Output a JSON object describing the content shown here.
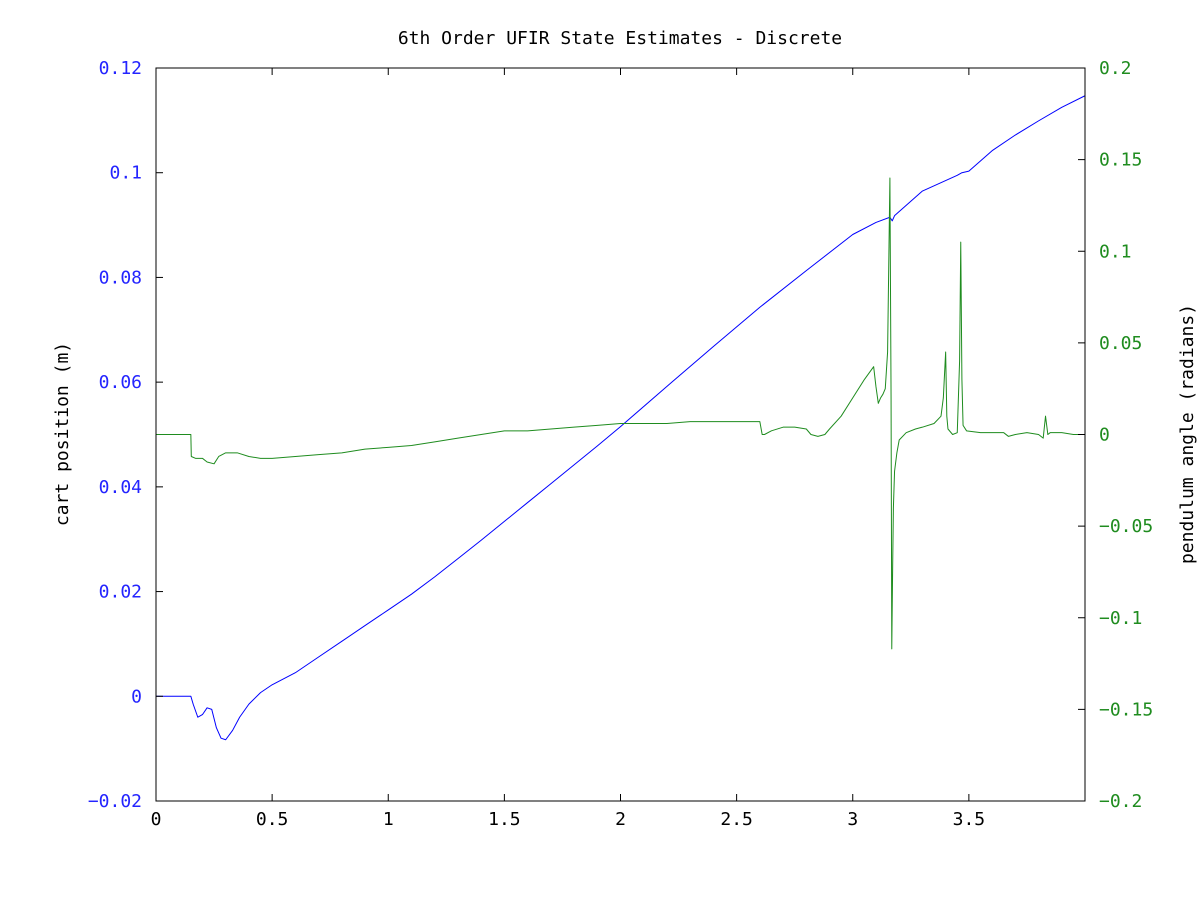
{
  "chart_data": {
    "type": "line",
    "title": "6th Order UFIR State Estimates - Discrete",
    "xlabel": "",
    "ylabel": "cart position (m)",
    "y2label": "pendulum angle (radians)",
    "xlim": [
      0,
      4
    ],
    "ylim": [
      -0.02,
      0.12
    ],
    "y2lim": [
      -0.2,
      0.2
    ],
    "grid": false,
    "x_ticks": [
      "0",
      "0.5",
      "1",
      "1.5",
      "2",
      "2.5",
      "3",
      "3.5"
    ],
    "y_ticks": [
      "-0.02",
      "0",
      "0.02",
      "0.04",
      "0.06",
      "0.08",
      "0.1",
      "0.12"
    ],
    "y2_ticks": [
      "-0.2",
      "-0.15",
      "-0.1",
      "-0.05",
      "0",
      "0.05",
      "0.1",
      "0.15",
      "0.2"
    ],
    "colors": {
      "left_axis": "#2424ff",
      "right_axis": "#1f8c1f",
      "axes": "#000000"
    },
    "series": [
      {
        "axis": "left",
        "color": "#0000ff",
        "x": [
          0,
          0.15,
          0.16,
          0.18,
          0.2,
          0.22,
          0.24,
          0.26,
          0.28,
          0.3,
          0.33,
          0.36,
          0.4,
          0.45,
          0.5,
          0.6,
          0.7,
          0.8,
          0.9,
          1.0,
          1.1,
          1.2,
          1.3,
          1.4,
          1.5,
          1.6,
          1.7,
          1.8,
          1.9,
          2.0,
          2.2,
          2.4,
          2.6,
          2.8,
          3.0,
          3.1,
          3.16,
          3.17,
          3.18,
          3.3,
          3.45,
          3.47,
          3.5,
          3.6,
          3.7,
          3.8,
          3.9,
          4.0
        ],
        "y": [
          0,
          0,
          -0.0015,
          -0.004,
          -0.0035,
          -0.0022,
          -0.0025,
          -0.006,
          -0.008,
          -0.0083,
          -0.0065,
          -0.004,
          -0.0015,
          0.0007,
          0.0022,
          0.0045,
          0.0075,
          0.0105,
          0.0135,
          0.0165,
          0.0195,
          0.0228,
          0.0263,
          0.0298,
          0.0334,
          0.037,
          0.0406,
          0.0442,
          0.0478,
          0.0515,
          0.0592,
          0.0668,
          0.0743,
          0.0813,
          0.0882,
          0.0905,
          0.0915,
          0.0908,
          0.0918,
          0.0965,
          0.0995,
          0.1,
          0.1003,
          0.1042,
          0.1072,
          0.1099,
          0.1125,
          0.1147
        ]
      },
      {
        "axis": "right",
        "color": "#1f8c1f",
        "x": [
          0,
          0.15,
          0.152,
          0.17,
          0.2,
          0.22,
          0.25,
          0.27,
          0.3,
          0.35,
          0.4,
          0.45,
          0.5,
          0.6,
          0.7,
          0.8,
          0.9,
          1.0,
          1.1,
          1.2,
          1.3,
          1.4,
          1.5,
          1.6,
          1.7,
          1.8,
          1.9,
          2.0,
          2.1,
          2.2,
          2.3,
          2.4,
          2.5,
          2.6,
          2.61,
          2.62,
          2.65,
          2.7,
          2.75,
          2.8,
          2.82,
          2.85,
          2.88,
          2.9,
          2.95,
          3.0,
          3.05,
          3.09,
          3.1,
          3.11,
          3.12,
          3.13,
          3.14,
          3.15,
          3.16,
          3.165,
          3.168,
          3.172,
          3.175,
          3.18,
          3.19,
          3.2,
          3.23,
          3.27,
          3.3,
          3.35,
          3.38,
          3.39,
          3.4,
          3.405,
          3.41,
          3.43,
          3.45,
          3.46,
          3.465,
          3.47,
          3.475,
          3.49,
          3.55,
          3.6,
          3.65,
          3.67,
          3.7,
          3.75,
          3.8,
          3.82,
          3.83,
          3.84,
          3.85,
          3.9,
          3.95,
          4.0
        ],
        "y": [
          0,
          0,
          -0.012,
          -0.013,
          -0.013,
          -0.015,
          -0.016,
          -0.012,
          -0.01,
          -0.01,
          -0.012,
          -0.013,
          -0.013,
          -0.012,
          -0.011,
          -0.01,
          -0.008,
          -0.007,
          -0.006,
          -0.004,
          -0.002,
          0.0,
          0.002,
          0.002,
          0.003,
          0.004,
          0.005,
          0.006,
          0.006,
          0.006,
          0.007,
          0.007,
          0.007,
          0.007,
          0.0,
          0.0,
          0.002,
          0.004,
          0.004,
          0.003,
          0.0,
          -0.001,
          0.0,
          0.003,
          0.01,
          0.02,
          0.03,
          0.037,
          0.026,
          0.017,
          0.02,
          0.022,
          0.025,
          0.045,
          0.14,
          0.02,
          -0.117,
          -0.07,
          -0.04,
          -0.02,
          -0.01,
          -0.003,
          0.001,
          0.003,
          0.004,
          0.006,
          0.01,
          0.02,
          0.045,
          0.01,
          0.003,
          0.0,
          0.001,
          0.04,
          0.105,
          0.03,
          0.005,
          0.002,
          0.001,
          0.001,
          0.001,
          -0.001,
          0.0,
          0.001,
          0.0,
          -0.002,
          0.01,
          0.0,
          0.001,
          0.001,
          0.0,
          0.0
        ]
      }
    ]
  }
}
